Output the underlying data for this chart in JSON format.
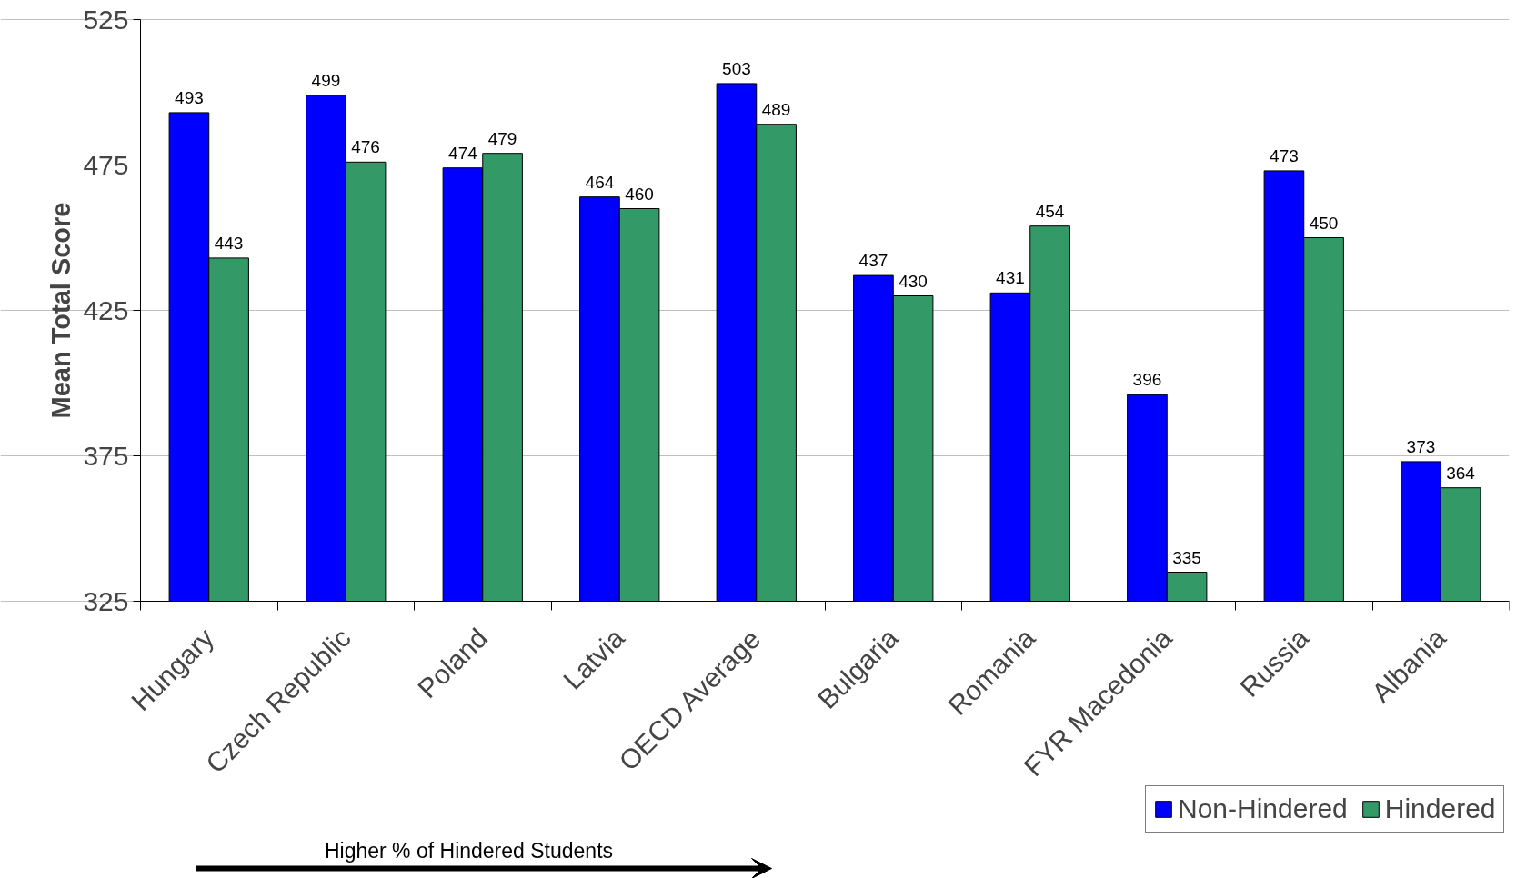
{
  "chart_data": {
    "type": "bar",
    "ylabel": "Mean Total Score",
    "categories": [
      "Hungary",
      "Czech Republic",
      "Poland",
      "Latvia",
      "OECD Average",
      "Bulgaria",
      "Romania",
      "FYR Macedonia",
      "Russia",
      "Albania"
    ],
    "series": [
      {
        "name": "Non-Hindered",
        "color": "#0000ff",
        "values": [
          493,
          499,
          474,
          464,
          503,
          437,
          431,
          396,
          473,
          373
        ]
      },
      {
        "name": "Hindered",
        "color": "#339966",
        "values": [
          443,
          476,
          479,
          460,
          489,
          430,
          454,
          335,
          450,
          364
        ]
      }
    ],
    "ylim": [
      325,
      525
    ],
    "yticks": [
      325,
      375,
      425,
      475,
      525
    ],
    "grid": "y",
    "legend": "bottom right",
    "data_labels": true,
    "annotations": [
      "Higher % of Hindered Students"
    ]
  }
}
